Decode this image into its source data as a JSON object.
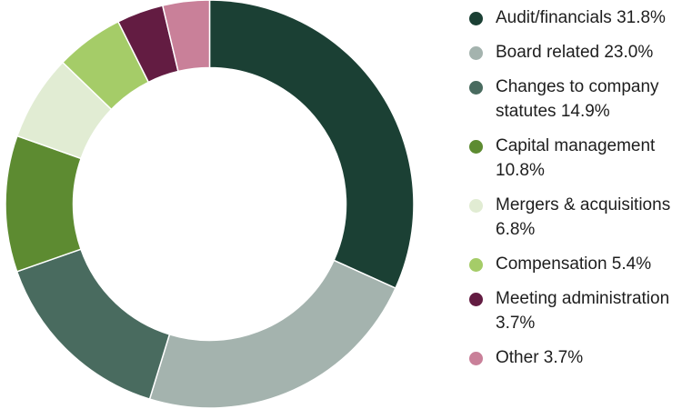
{
  "chart_data": {
    "type": "pie",
    "title": "",
    "categories": [
      "Audit/financials",
      "Board related",
      "Changes to company statutes",
      "Capital management",
      "Mergers & acquisitions",
      "Compensation",
      "Meeting administration",
      "Other"
    ],
    "values": [
      31.8,
      23.0,
      14.9,
      10.8,
      6.8,
      5.4,
      3.7,
      3.7
    ],
    "colors": [
      "#1b4034",
      "#a4b3ae",
      "#496b5f",
      "#5d8b31",
      "#e1ecd3",
      "#a5cc68",
      "#631c42",
      "#c98099"
    ],
    "legend": [
      "Audit/financials 31.8%",
      "Board related 23.0%",
      "Changes to company statutes 14.9%",
      "Capital management 10.8%",
      "Mergers & acquisitions 6.8%",
      "Compensation 5.4%",
      "Meeting administration 3.7%",
      "Other 3.7%"
    ],
    "legend_position": "right"
  }
}
